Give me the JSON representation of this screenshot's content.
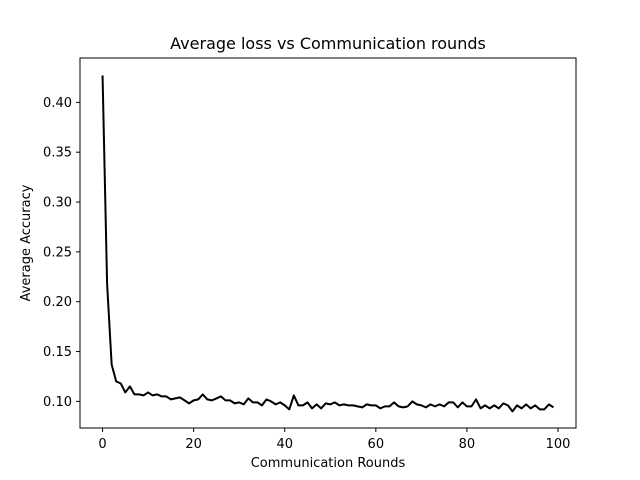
{
  "chart_data": {
    "type": "line",
    "title": "Average loss vs Communication rounds",
    "xlabel": "Communication Rounds",
    "ylabel": "Average Accuracy",
    "xlim": [
      -4.95,
      103.95
    ],
    "ylim": [
      0.0733,
      0.4445
    ],
    "xticks": [
      0,
      20,
      40,
      60,
      80,
      100
    ],
    "yticks": [
      0.1,
      0.15,
      0.2,
      0.25,
      0.3,
      0.35,
      0.4
    ],
    "xtick_labels": [
      "0",
      "20",
      "40",
      "60",
      "80",
      "100"
    ],
    "ytick_labels": [
      "0.10",
      "0.15",
      "0.20",
      "0.25",
      "0.30",
      "0.35",
      "0.40"
    ],
    "grid": false,
    "legend": "none",
    "line_color": "#000000",
    "series": [
      {
        "x": [
          0,
          1,
          2,
          3,
          4,
          5,
          6,
          7,
          8,
          9,
          10,
          11,
          12,
          13,
          14,
          15,
          16,
          17,
          18,
          19,
          20,
          21,
          22,
          23,
          24,
          25,
          26,
          27,
          28,
          29,
          30,
          31,
          32,
          33,
          34,
          35,
          36,
          37,
          38,
          39,
          40,
          41,
          42,
          43,
          44,
          45,
          46,
          47,
          48,
          49,
          50,
          51,
          52,
          53,
          54,
          55,
          56,
          57,
          58,
          59,
          60,
          61,
          62,
          63,
          64,
          65,
          66,
          67,
          68,
          69,
          70,
          71,
          72,
          73,
          74,
          75,
          76,
          77,
          78,
          79,
          80,
          81,
          82,
          83,
          84,
          85,
          86,
          87,
          88,
          89,
          90,
          91,
          92,
          93,
          94,
          95,
          96,
          97,
          98,
          99
        ],
        "y": [
          0.427,
          0.218,
          0.137,
          0.12,
          0.118,
          0.109,
          0.115,
          0.107,
          0.107,
          0.106,
          0.109,
          0.106,
          0.107,
          0.105,
          0.105,
          0.102,
          0.103,
          0.104,
          0.101,
          0.098,
          0.101,
          0.102,
          0.107,
          0.102,
          0.101,
          0.103,
          0.105,
          0.101,
          0.101,
          0.098,
          0.099,
          0.097,
          0.103,
          0.099,
          0.099,
          0.096,
          0.102,
          0.1,
          0.097,
          0.099,
          0.096,
          0.092,
          0.106,
          0.096,
          0.096,
          0.099,
          0.093,
          0.097,
          0.093,
          0.098,
          0.097,
          0.099,
          0.096,
          0.097,
          0.096,
          0.096,
          0.095,
          0.094,
          0.097,
          0.096,
          0.096,
          0.093,
          0.095,
          0.095,
          0.099,
          0.095,
          0.094,
          0.095,
          0.1,
          0.097,
          0.096,
          0.094,
          0.097,
          0.095,
          0.097,
          0.095,
          0.099,
          0.099,
          0.094,
          0.099,
          0.095,
          0.095,
          0.102,
          0.093,
          0.096,
          0.093,
          0.096,
          0.093,
          0.098,
          0.096,
          0.09,
          0.096,
          0.093,
          0.097,
          0.093,
          0.096,
          0.092,
          0.092,
          0.097,
          0.094
        ]
      }
    ]
  }
}
